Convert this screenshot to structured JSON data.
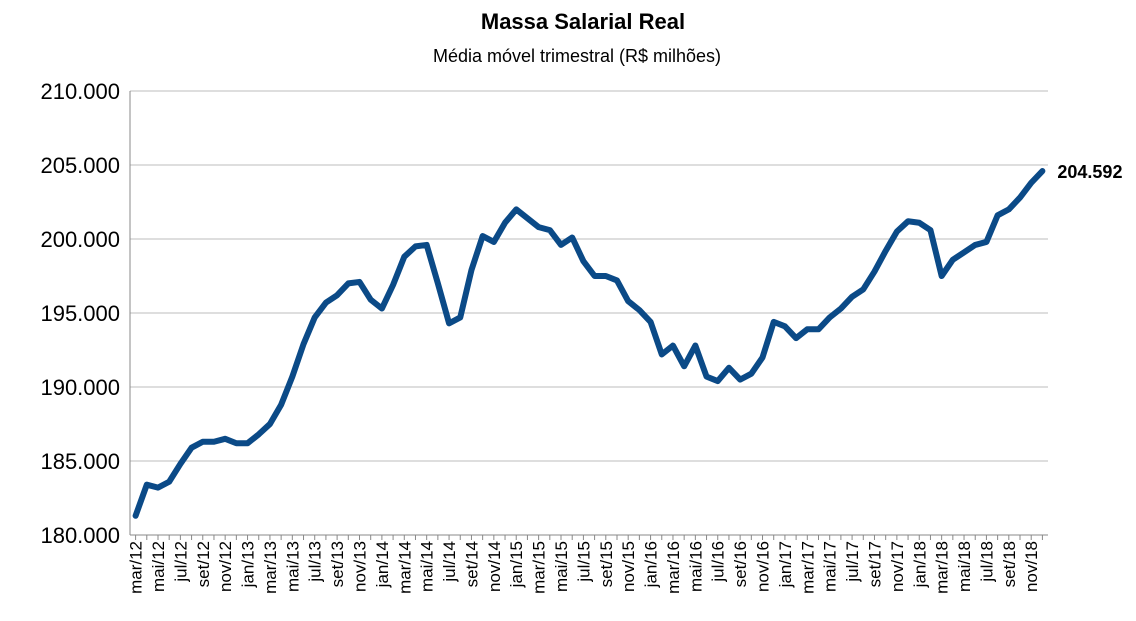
{
  "chart_data": {
    "type": "line",
    "title": "Massa Salarial Real",
    "subtitle": "Média móvel trimestral (R$ milhões)",
    "categories": [
      "mar/12",
      null,
      "mai/12",
      null,
      "jul/12",
      null,
      "set/12",
      null,
      "nov/12",
      null,
      "jan/13",
      null,
      "mar/13",
      null,
      "mai/13",
      null,
      "jul/13",
      null,
      "set/13",
      null,
      "nov/13",
      null,
      "jan/14",
      null,
      "mar/14",
      null,
      "mai/14",
      null,
      "jul/14",
      null,
      "set/14",
      null,
      "nov/14",
      null,
      "jan/15",
      null,
      "mar/15",
      null,
      "mai/15",
      null,
      "jul/15",
      null,
      "set/15",
      null,
      "nov/15",
      null,
      "jan/16",
      null,
      "mar/16",
      null,
      "mai/16",
      null,
      "jul/16",
      null,
      "set/16",
      null,
      "nov/16",
      null,
      "jan/17",
      null,
      "mar/17",
      null,
      "mai/17",
      null,
      "jul/17",
      null,
      "set/17",
      null,
      "nov/17",
      null,
      "jan/18",
      null,
      "mar/18",
      null,
      "mai/18",
      null,
      "jul/18",
      null,
      "set/18",
      null,
      "nov/18",
      null
    ],
    "series": [
      {
        "color": "#0b4a87",
        "values": [
          181300,
          183400,
          183200,
          183600,
          184800,
          185900,
          186300,
          186300,
          186500,
          186200,
          186200,
          186800,
          187500,
          188800,
          190700,
          192900,
          194700,
          195700,
          196200,
          197000,
          197100,
          195900,
          195300,
          196900,
          198800,
          199500,
          199600,
          197000,
          194300,
          194700,
          197900,
          200200,
          199800,
          201100,
          202000,
          201400,
          200800,
          200600,
          199600,
          200100,
          198500,
          197500,
          197500,
          197200,
          195800,
          195200,
          194400,
          192200,
          192800,
          191400,
          192800,
          190700,
          190400,
          191300,
          190500,
          190900,
          192000,
          194400,
          194100,
          193300,
          193900,
          193900,
          194700,
          195300,
          196100,
          196600,
          197800,
          199200,
          200500,
          201200,
          201100,
          200600,
          197500,
          198600,
          199100,
          199600,
          199800,
          201600,
          202000,
          202800,
          203800,
          204592
        ],
        "value_labels": [
          null,
          null,
          null,
          null,
          null,
          null,
          null,
          null,
          null,
          null,
          null,
          null,
          null,
          null,
          null,
          null,
          null,
          null,
          null,
          null,
          null,
          null,
          null,
          null,
          null,
          null,
          null,
          null,
          null,
          null,
          null,
          null,
          null,
          null,
          null,
          null,
          null,
          null,
          null,
          null,
          null,
          null,
          null,
          null,
          null,
          null,
          null,
          null,
          null,
          null,
          null,
          null,
          null,
          null,
          null,
          null,
          null,
          null,
          null,
          null,
          null,
          null,
          null,
          null,
          null,
          null,
          null,
          null,
          null,
          null,
          null,
          null,
          null,
          null,
          null,
          null,
          null,
          null,
          null,
          null,
          null,
          "204.592"
        ]
      }
    ],
    "ylim": [
      180000,
      210000
    ],
    "yticks": [
      {
        "value": 180000,
        "label": "180.000"
      },
      {
        "value": 185000,
        "label": "185.000"
      },
      {
        "value": 190000,
        "label": "190.000"
      },
      {
        "value": 195000,
        "label": "195.000"
      },
      {
        "value": 200000,
        "label": "200.000"
      },
      {
        "value": 205000,
        "label": "205.000"
      },
      {
        "value": 210000,
        "label": "210.000"
      }
    ],
    "grid": true
  }
}
